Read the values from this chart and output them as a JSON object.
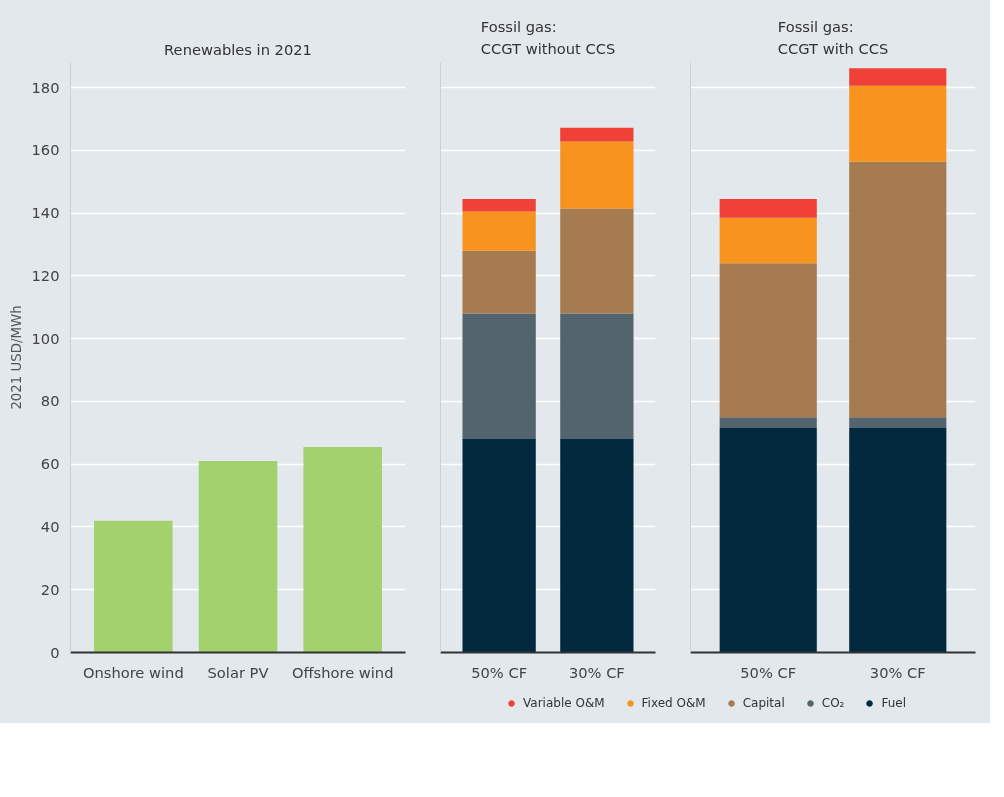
{
  "chart_data": [
    {
      "type": "bar",
      "title": "Renewables in 2021",
      "ylabel": "2021 USD/MWh",
      "categories": [
        "Onshore wind",
        "Solar PV",
        "Offshore wind"
      ],
      "values": [
        42,
        61,
        65.5
      ],
      "color": "#a3d16e",
      "ylim": [
        0,
        188
      ],
      "yticks": [
        0,
        20,
        40,
        60,
        80,
        100,
        120,
        140,
        160,
        180
      ],
      "grid": "y"
    },
    {
      "type": "bar",
      "title": "Fossil gas:\nCCGT without CCS",
      "categories": [
        "50% CF",
        "30% CF"
      ],
      "stacked": true,
      "ylim": [
        0,
        188
      ],
      "yticks": [
        0,
        20,
        40,
        60,
        80,
        100,
        120,
        140,
        160,
        180
      ],
      "grid": "y",
      "tick_labels": "x",
      "series": [
        {
          "color": "#03293f",
          "values": [
            68,
            68
          ]
        },
        {
          "color": "#53646e",
          "values": [
            40,
            40
          ]
        },
        {
          "color": "#a67b50",
          "values": [
            20,
            33.5
          ]
        },
        {
          "color": "#f7931e",
          "values": [
            12.5,
            21.3
          ]
        },
        {
          "color": "#ef4136",
          "values": [
            4,
            4.4
          ]
        }
      ]
    },
    {
      "type": "bar",
      "title": "Fossil gas:\nCCGT with CCS",
      "categories": [
        "50% CF",
        "30% CF"
      ],
      "stacked": true,
      "ylim": [
        0,
        188
      ],
      "yticks": [
        0,
        20,
        40,
        60,
        80,
        100,
        120,
        140,
        160,
        180
      ],
      "grid": "y",
      "tick_labels": "x",
      "legend": "bottom",
      "series": [
        {
          "name": "Fuel",
          "color": "#03293f",
          "values": [
            71.5,
            71.5
          ]
        },
        {
          "name": "CO₂",
          "color": "#53646e",
          "values": [
            3.5,
            3.5
          ]
        },
        {
          "name": "Capital",
          "color": "#a67b50",
          "values": [
            49,
            81.4
          ]
        },
        {
          "name": "Fixed O&M",
          "color": "#f7931e",
          "values": [
            14.5,
            24.2
          ]
        },
        {
          "name": "Variable O&M",
          "color": "#ef4136",
          "values": [
            6,
            5.6
          ]
        }
      ]
    }
  ]
}
